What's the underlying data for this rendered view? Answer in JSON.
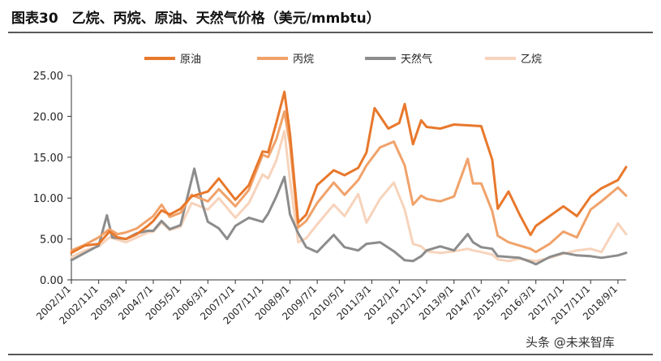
{
  "figure": {
    "title": "图表30　乙烷、丙烷、原油、天然气价格（美元/mmbtu）",
    "watermark": "头条 @未来智库"
  },
  "chart_data": {
    "type": "line",
    "title": "图表30　乙烷、丙烷、原油、天然气价格（美元/mmbtu）",
    "xlabel": "",
    "ylabel": "",
    "ylim": [
      0,
      25
    ],
    "y_ticks": [
      "0.00",
      "5.00",
      "10.00",
      "15.00",
      "20.00",
      "25.00"
    ],
    "x_ticks": [
      "2002/1/1",
      "2002/11/1",
      "2003/9/1",
      "2004/7/1",
      "2005/5/1",
      "2006/3/1",
      "2007/1/1",
      "2007/11/1",
      "2008/9/1",
      "2009/7/1",
      "2010/5/1",
      "2011/3/1",
      "2012/1/1",
      "2012/11/1",
      "2013/9/1",
      "2014/7/1",
      "2015/5/1",
      "2016/3/1",
      "2017/1/1",
      "2017/11/1",
      "2018/9/1"
    ],
    "grid": false,
    "legend_position": "top",
    "series": [
      {
        "name": "原油",
        "color": "#E8782C",
        "points": [
          [
            "2002/1/1",
            3.3
          ],
          [
            "2002/6/1",
            4.2
          ],
          [
            "2002/11/1",
            4.4
          ],
          [
            "2003/3/1",
            5.9
          ],
          [
            "2003/6/1",
            5.2
          ],
          [
            "2003/9/1",
            5.0
          ],
          [
            "2004/1/1",
            5.6
          ],
          [
            "2004/5/1",
            6.6
          ],
          [
            "2004/7/1",
            7.2
          ],
          [
            "2004/10/1",
            8.5
          ],
          [
            "2005/1/1",
            8.0
          ],
          [
            "2005/5/1",
            8.7
          ],
          [
            "2005/9/1",
            10.2
          ],
          [
            "2006/3/1",
            10.8
          ],
          [
            "2006/7/1",
            12.4
          ],
          [
            "2007/1/1",
            9.8
          ],
          [
            "2007/6/1",
            11.6
          ],
          [
            "2007/11/1",
            15.7
          ],
          [
            "2008/1/1",
            15.6
          ],
          [
            "2008/4/1",
            19.2
          ],
          [
            "2008/7/1",
            23.0
          ],
          [
            "2008/9/1",
            17.8
          ],
          [
            "2008/12/1",
            7.0
          ],
          [
            "2009/3/1",
            8.0
          ],
          [
            "2009/7/1",
            11.6
          ],
          [
            "2010/1/1",
            13.4
          ],
          [
            "2010/5/1",
            12.8
          ],
          [
            "2010/10/1",
            13.7
          ],
          [
            "2011/1/1",
            15.6
          ],
          [
            "2011/4/1",
            21.0
          ],
          [
            "2011/9/1",
            18.5
          ],
          [
            "2012/1/1",
            19.2
          ],
          [
            "2012/3/1",
            21.5
          ],
          [
            "2012/6/1",
            16.6
          ],
          [
            "2012/9/1",
            19.5
          ],
          [
            "2012/11/1",
            18.7
          ],
          [
            "2013/4/1",
            18.5
          ],
          [
            "2013/9/1",
            19.0
          ],
          [
            "2014/2/1",
            18.9
          ],
          [
            "2014/7/1",
            18.8
          ],
          [
            "2014/11/1",
            14.7
          ],
          [
            "2015/1/1",
            8.7
          ],
          [
            "2015/5/1",
            10.8
          ],
          [
            "2015/9/1",
            8.0
          ],
          [
            "2016/1/1",
            5.5
          ],
          [
            "2016/3/1",
            6.6
          ],
          [
            "2016/8/1",
            7.8
          ],
          [
            "2017/1/1",
            9.0
          ],
          [
            "2017/6/1",
            7.8
          ],
          [
            "2017/11/1",
            10.2
          ],
          [
            "2018/3/1",
            11.2
          ],
          [
            "2018/9/1",
            12.2
          ],
          [
            "2018/12/1",
            13.8
          ]
        ]
      },
      {
        "name": "丙烷",
        "color": "#F0A26A",
        "points": [
          [
            "2002/1/1",
            3.6
          ],
          [
            "2002/6/1",
            4.3
          ],
          [
            "2002/11/1",
            5.2
          ],
          [
            "2003/3/1",
            6.2
          ],
          [
            "2003/6/1",
            5.6
          ],
          [
            "2003/9/1",
            5.8
          ],
          [
            "2004/1/1",
            6.3
          ],
          [
            "2004/5/1",
            7.3
          ],
          [
            "2004/7/1",
            7.8
          ],
          [
            "2004/10/1",
            9.2
          ],
          [
            "2005/1/1",
            7.7
          ],
          [
            "2005/5/1",
            8.2
          ],
          [
            "2005/9/1",
            10.4
          ],
          [
            "2006/3/1",
            9.6
          ],
          [
            "2006/7/1",
            11.1
          ],
          [
            "2007/1/1",
            9.0
          ],
          [
            "2007/6/1",
            11.0
          ],
          [
            "2007/11/1",
            15.3
          ],
          [
            "2008/1/1",
            15.0
          ],
          [
            "2008/4/1",
            17.2
          ],
          [
            "2008/7/1",
            20.6
          ],
          [
            "2008/9/1",
            16.5
          ],
          [
            "2008/12/1",
            6.4
          ],
          [
            "2009/3/1",
            7.2
          ],
          [
            "2009/7/1",
            9.4
          ],
          [
            "2010/1/1",
            11.9
          ],
          [
            "2010/5/1",
            10.4
          ],
          [
            "2010/10/1",
            12.2
          ],
          [
            "2011/1/1",
            14.0
          ],
          [
            "2011/6/1",
            16.2
          ],
          [
            "2011/11/1",
            16.9
          ],
          [
            "2012/3/1",
            14.0
          ],
          [
            "2012/6/1",
            9.2
          ],
          [
            "2012/9/1",
            10.3
          ],
          [
            "2012/11/1",
            9.9
          ],
          [
            "2013/4/1",
            9.6
          ],
          [
            "2013/9/1",
            10.2
          ],
          [
            "2014/2/1",
            14.8
          ],
          [
            "2014/4/1",
            11.8
          ],
          [
            "2014/7/1",
            11.8
          ],
          [
            "2014/11/1",
            8.4
          ],
          [
            "2015/1/1",
            5.4
          ],
          [
            "2015/5/1",
            4.6
          ],
          [
            "2015/9/1",
            4.2
          ],
          [
            "2016/1/1",
            3.8
          ],
          [
            "2016/3/1",
            3.4
          ],
          [
            "2016/8/1",
            4.4
          ],
          [
            "2017/1/1",
            5.9
          ],
          [
            "2017/6/1",
            5.2
          ],
          [
            "2017/11/1",
            8.6
          ],
          [
            "2018/3/1",
            9.6
          ],
          [
            "2018/9/1",
            11.3
          ],
          [
            "2018/12/1",
            10.3
          ]
        ]
      },
      {
        "name": "天然气",
        "color": "#8C8C8C",
        "points": [
          [
            "2002/1/1",
            2.4
          ],
          [
            "2002/6/1",
            3.3
          ],
          [
            "2002/11/1",
            4.2
          ],
          [
            "2003/2/1",
            7.9
          ],
          [
            "2003/4/1",
            5.2
          ],
          [
            "2003/9/1",
            5.0
          ],
          [
            "2004/1/1",
            5.7
          ],
          [
            "2004/5/1",
            6.0
          ],
          [
            "2004/7/1",
            6.0
          ],
          [
            "2004/10/1",
            7.2
          ],
          [
            "2005/1/1",
            6.2
          ],
          [
            "2005/5/1",
            6.7
          ],
          [
            "2005/10/1",
            13.6
          ],
          [
            "2006/1/1",
            9.2
          ],
          [
            "2006/3/1",
            7.1
          ],
          [
            "2006/7/1",
            6.3
          ],
          [
            "2006/10/1",
            5.0
          ],
          [
            "2007/1/1",
            6.6
          ],
          [
            "2007/6/1",
            7.6
          ],
          [
            "2007/11/1",
            7.1
          ],
          [
            "2008/1/1",
            8.1
          ],
          [
            "2008/4/1",
            10.2
          ],
          [
            "2008/7/1",
            12.6
          ],
          [
            "2008/9/1",
            8.0
          ],
          [
            "2008/12/1",
            5.7
          ],
          [
            "2009/3/1",
            4.0
          ],
          [
            "2009/7/1",
            3.4
          ],
          [
            "2010/1/1",
            5.5
          ],
          [
            "2010/5/1",
            4.0
          ],
          [
            "2010/10/1",
            3.6
          ],
          [
            "2011/1/1",
            4.4
          ],
          [
            "2011/6/1",
            4.6
          ],
          [
            "2011/11/1",
            3.5
          ],
          [
            "2012/3/1",
            2.4
          ],
          [
            "2012/6/1",
            2.3
          ],
          [
            "2012/9/1",
            2.9
          ],
          [
            "2012/11/1",
            3.6
          ],
          [
            "2013/4/1",
            4.1
          ],
          [
            "2013/9/1",
            3.6
          ],
          [
            "2014/2/1",
            5.6
          ],
          [
            "2014/4/1",
            4.6
          ],
          [
            "2014/7/1",
            4.0
          ],
          [
            "2014/11/1",
            3.8
          ],
          [
            "2015/1/1",
            2.9
          ],
          [
            "2015/5/1",
            2.8
          ],
          [
            "2015/9/1",
            2.7
          ],
          [
            "2016/1/1",
            2.2
          ],
          [
            "2016/3/1",
            1.9
          ],
          [
            "2016/8/1",
            2.8
          ],
          [
            "2017/1/1",
            3.3
          ],
          [
            "2017/6/1",
            3.0
          ],
          [
            "2017/11/1",
            2.9
          ],
          [
            "2018/3/1",
            2.7
          ],
          [
            "2018/9/1",
            3.0
          ],
          [
            "2018/12/1",
            3.3
          ]
        ]
      },
      {
        "name": "乙烷",
        "color": "#F7D3BB",
        "points": [
          [
            "2002/1/1",
            2.8
          ],
          [
            "2002/6/1",
            3.6
          ],
          [
            "2002/11/1",
            4.1
          ],
          [
            "2003/3/1",
            5.2
          ],
          [
            "2003/6/1",
            4.9
          ],
          [
            "2003/9/1",
            4.6
          ],
          [
            "2004/1/1",
            5.2
          ],
          [
            "2004/5/1",
            5.8
          ],
          [
            "2004/7/1",
            5.9
          ],
          [
            "2004/10/1",
            7.0
          ],
          [
            "2005/1/1",
            6.1
          ],
          [
            "2005/5/1",
            6.5
          ],
          [
            "2005/9/1",
            9.4
          ],
          [
            "2006/3/1",
            8.6
          ],
          [
            "2006/7/1",
            10.0
          ],
          [
            "2007/1/1",
            7.6
          ],
          [
            "2007/6/1",
            9.4
          ],
          [
            "2007/11/1",
            12.9
          ],
          [
            "2008/1/1",
            12.4
          ],
          [
            "2008/4/1",
            14.6
          ],
          [
            "2008/7/1",
            18.2
          ],
          [
            "2008/9/1",
            12.1
          ],
          [
            "2008/12/1",
            4.6
          ],
          [
            "2009/3/1",
            5.1
          ],
          [
            "2009/7/1",
            6.8
          ],
          [
            "2010/1/1",
            9.2
          ],
          [
            "2010/5/1",
            7.8
          ],
          [
            "2010/10/1",
            10.5
          ],
          [
            "2011/1/1",
            7.0
          ],
          [
            "2011/6/1",
            9.9
          ],
          [
            "2011/11/1",
            11.9
          ],
          [
            "2012/3/1",
            8.6
          ],
          [
            "2012/6/1",
            4.4
          ],
          [
            "2012/9/1",
            4.1
          ],
          [
            "2012/11/1",
            3.5
          ],
          [
            "2013/4/1",
            3.3
          ],
          [
            "2013/9/1",
            3.5
          ],
          [
            "2014/2/1",
            3.8
          ],
          [
            "2014/4/1",
            3.6
          ],
          [
            "2014/7/1",
            3.4
          ],
          [
            "2014/11/1",
            3.1
          ],
          [
            "2015/1/1",
            2.5
          ],
          [
            "2015/5/1",
            2.3
          ],
          [
            "2015/9/1",
            2.6
          ],
          [
            "2016/1/1",
            2.4
          ],
          [
            "2016/3/1",
            2.3
          ],
          [
            "2016/8/1",
            2.7
          ],
          [
            "2017/1/1",
            3.2
          ],
          [
            "2017/6/1",
            3.6
          ],
          [
            "2017/11/1",
            3.8
          ],
          [
            "2018/3/1",
            3.4
          ],
          [
            "2018/9/1",
            6.9
          ],
          [
            "2018/12/1",
            5.6
          ]
        ]
      }
    ]
  }
}
